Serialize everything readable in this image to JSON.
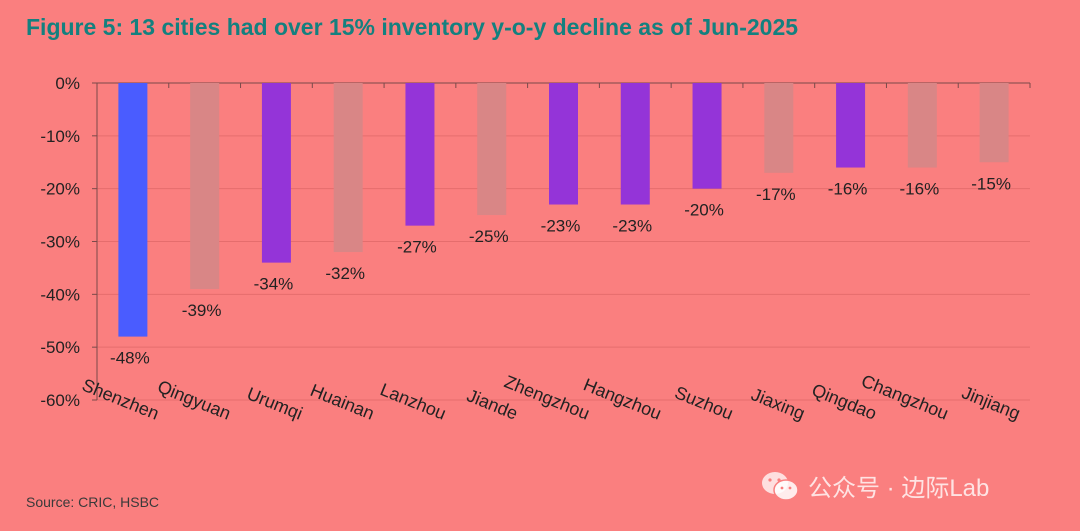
{
  "colors": {
    "background": "#fa7f7f",
    "title": "#14807f",
    "highlight_bar": "#4a5cff",
    "purple_bar": "#9434d8",
    "muted_bar": "#d98686",
    "axis_text": "#222222"
  },
  "chart_data": {
    "type": "bar",
    "title": "Figure 5: 13 cities had over 15% inventory y-o-y decline as of Jun-2025",
    "categories": [
      "Shenzhen",
      "Qingyuan",
      "Urumqi",
      "Huainan",
      "Lanzhou",
      "Jiande",
      "Zhengzhou",
      "Hangzhou",
      "Suzhou",
      "Jiaxing",
      "Qingdao",
      "Changzhou",
      "Jinjiang"
    ],
    "values": [
      -48,
      -39,
      -34,
      -32,
      -27,
      -25,
      -23,
      -23,
      -20,
      -17,
      -16,
      -16,
      -15
    ],
    "data_labels": [
      "-48%",
      "-39%",
      "-34%",
      "-32%",
      "-27%",
      "-25%",
      "-23%",
      "-23%",
      "-20%",
      "-17%",
      "-16%",
      "-16%",
      "-15%"
    ],
    "bar_styles": [
      "highlight",
      "muted",
      "purple",
      "muted",
      "purple",
      "muted",
      "purple",
      "purple",
      "purple",
      "muted",
      "purple",
      "muted",
      "muted"
    ],
    "yticks": [
      0,
      -10,
      -20,
      -30,
      -40,
      -50,
      -60
    ],
    "ytick_labels": [
      "0%",
      "-10%",
      "-20%",
      "-30%",
      "-40%",
      "-50%",
      "-60%"
    ],
    "ylim": [
      -60,
      0
    ],
    "xlabel": "",
    "ylabel": "",
    "grid": true
  },
  "source": "Source: CRIC, HSBC",
  "watermark": {
    "icon": "wechat-icon",
    "text": "公众号 · 边际Lab"
  }
}
